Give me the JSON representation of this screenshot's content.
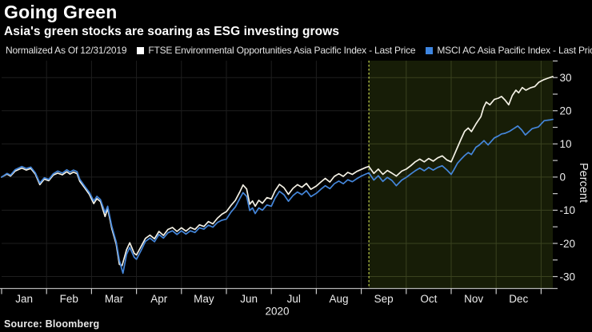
{
  "header": {
    "title": "Going Green",
    "subtitle": "Asia's green stocks are soaring as ESG investing grows"
  },
  "legend": {
    "prefix": "Normalized As Of 12/31/2019",
    "items": [
      {
        "label": "FTSE Environmental Opportunities Asia Pacific Index - Last Price",
        "swatch_color": "#ffffff"
      },
      {
        "label": "MSCI AC Asia Pacific Index - Last Price",
        "swatch_color": "#3d85e0"
      }
    ]
  },
  "footer": {
    "source": "Source: Bloomberg"
  },
  "colors": {
    "background": "#000000",
    "grid_dark": "#1e1e1e",
    "grid_highlight": "#3a421f",
    "highlight_fill": "#171d07",
    "highlight_dash_line": "#a9b741",
    "axis_line": "#b4b4b4",
    "tick": "#c9c9c9",
    "axis_text": "#ececec",
    "series_ftse": "#f4f1e5",
    "series_msci": "#4486da"
  },
  "chart_data": {
    "type": "line",
    "title": "Going Green",
    "subtitle": "Asia's green stocks are soaring as ESG investing grows",
    "normalized_as_of": "12/31/2019",
    "xlabel": "2020",
    "ylabel": "Percent",
    "x_tick_labels": [
      "Jan",
      "Feb",
      "Mar",
      "Apr",
      "May",
      "Jun",
      "Jul",
      "Aug",
      "Sep",
      "Oct",
      "Nov",
      "Dec"
    ],
    "x_domain_months": [
      0,
      12.26
    ],
    "y_ticks_labeled": [
      30,
      20,
      10,
      0,
      -10,
      -20,
      -30
    ],
    "y_minor_tick_step": 5,
    "y_range": [
      -33.6,
      35.1
    ],
    "grid": true,
    "legend_position": "top",
    "highlight_region": {
      "start_month": 8.17,
      "end_month": 12.26
    },
    "series": [
      {
        "name": "FTSE Environmental Opportunities Asia Pacific Index - Last Price",
        "color": "#f4f1e5",
        "points": [
          [
            0,
            0
          ],
          [
            0.12,
            0.9
          ],
          [
            0.2,
            0.3
          ],
          [
            0.3,
            1.8
          ],
          [
            0.45,
            2.7
          ],
          [
            0.55,
            2.1
          ],
          [
            0.65,
            2.6
          ],
          [
            0.75,
            0.9
          ],
          [
            0.85,
            -2.3
          ],
          [
            0.95,
            -0.6
          ],
          [
            1.05,
            -1.1
          ],
          [
            1.15,
            0.6
          ],
          [
            1.25,
            1.2
          ],
          [
            1.35,
            0.7
          ],
          [
            1.45,
            1.6
          ],
          [
            1.52,
            0.9
          ],
          [
            1.6,
            1.5
          ],
          [
            1.68,
            1.0
          ],
          [
            1.74,
            -1.3
          ],
          [
            1.85,
            -3.3
          ],
          [
            1.95,
            -5.2
          ],
          [
            2.05,
            -8.0
          ],
          [
            2.12,
            -6.5
          ],
          [
            2.2,
            -7.4
          ],
          [
            2.3,
            -11.9
          ],
          [
            2.36,
            -9.5
          ],
          [
            2.45,
            -15.5
          ],
          [
            2.55,
            -20.3
          ],
          [
            2.62,
            -26.3
          ],
          [
            2.68,
            -26.7
          ],
          [
            2.78,
            -21.9
          ],
          [
            2.85,
            -19.8
          ],
          [
            2.95,
            -23.0
          ],
          [
            3.0,
            -23.5
          ],
          [
            3.1,
            -21.0
          ],
          [
            3.2,
            -18.5
          ],
          [
            3.3,
            -17.5
          ],
          [
            3.4,
            -18.6
          ],
          [
            3.5,
            -16.4
          ],
          [
            3.6,
            -17.6
          ],
          [
            3.7,
            -15.8
          ],
          [
            3.8,
            -15.2
          ],
          [
            3.9,
            -16.4
          ],
          [
            4.0,
            -15.3
          ],
          [
            4.1,
            -16.3
          ],
          [
            4.2,
            -15.2
          ],
          [
            4.3,
            -15.8
          ],
          [
            4.4,
            -14.4
          ],
          [
            4.5,
            -14.9
          ],
          [
            4.6,
            -13.4
          ],
          [
            4.7,
            -14.1
          ],
          [
            4.8,
            -12.4
          ],
          [
            4.9,
            -11.2
          ],
          [
            5.0,
            -10.4
          ],
          [
            5.1,
            -8.6
          ],
          [
            5.2,
            -7.0
          ],
          [
            5.3,
            -4.4
          ],
          [
            5.37,
            -2.4
          ],
          [
            5.45,
            -3.6
          ],
          [
            5.52,
            -8.2
          ],
          [
            5.58,
            -7.2
          ],
          [
            5.64,
            -8.8
          ],
          [
            5.72,
            -7.0
          ],
          [
            5.8,
            -7.9
          ],
          [
            5.9,
            -6.2
          ],
          [
            6.0,
            -6.6
          ],
          [
            6.08,
            -4.2
          ],
          [
            6.18,
            -2.2
          ],
          [
            6.28,
            -3.2
          ],
          [
            6.38,
            -5.2
          ],
          [
            6.48,
            -3.4
          ],
          [
            6.58,
            -2.3
          ],
          [
            6.68,
            -3.1
          ],
          [
            6.78,
            -1.9
          ],
          [
            6.88,
            -3.7
          ],
          [
            7.0,
            -2.7
          ],
          [
            7.1,
            -1.5
          ],
          [
            7.2,
            -0.4
          ],
          [
            7.3,
            -1.5
          ],
          [
            7.4,
            0.2
          ],
          [
            7.5,
            1.0
          ],
          [
            7.6,
            0.2
          ],
          [
            7.7,
            1.4
          ],
          [
            7.8,
            0.8
          ],
          [
            7.9,
            1.7
          ],
          [
            8.0,
            2.3
          ],
          [
            8.1,
            2.9
          ],
          [
            8.17,
            3.2
          ],
          [
            8.28,
            1.1
          ],
          [
            8.38,
            2.4
          ],
          [
            8.48,
            0.8
          ],
          [
            8.58,
            2.0
          ],
          [
            8.68,
            1.2
          ],
          [
            8.78,
            0.3
          ],
          [
            8.9,
            1.8
          ],
          [
            9.0,
            2.4
          ],
          [
            9.1,
            3.4
          ],
          [
            9.2,
            4.6
          ],
          [
            9.3,
            5.4
          ],
          [
            9.4,
            4.6
          ],
          [
            9.5,
            5.6
          ],
          [
            9.6,
            4.8
          ],
          [
            9.7,
            5.8
          ],
          [
            9.8,
            6.4
          ],
          [
            9.9,
            5.2
          ],
          [
            10.0,
            4.6
          ],
          [
            10.06,
            6.5
          ],
          [
            10.14,
            9.0
          ],
          [
            10.22,
            11.5
          ],
          [
            10.3,
            13.8
          ],
          [
            10.38,
            14.8
          ],
          [
            10.45,
            13.7
          ],
          [
            10.55,
            16.0
          ],
          [
            10.6,
            17.0
          ],
          [
            10.66,
            18.2
          ],
          [
            10.72,
            21.0
          ],
          [
            10.78,
            22.6
          ],
          [
            10.86,
            21.8
          ],
          [
            10.96,
            23.4
          ],
          [
            11.05,
            23.8
          ],
          [
            11.12,
            24.3
          ],
          [
            11.2,
            23.2
          ],
          [
            11.28,
            21.8
          ],
          [
            11.36,
            24.6
          ],
          [
            11.44,
            26.2
          ],
          [
            11.5,
            25.4
          ],
          [
            11.58,
            27.0
          ],
          [
            11.66,
            26.2
          ],
          [
            11.76,
            26.9
          ],
          [
            11.86,
            27.3
          ],
          [
            11.95,
            28.6
          ],
          [
            12.05,
            29.3
          ],
          [
            12.15,
            29.8
          ],
          [
            12.26,
            30.3
          ]
        ]
      },
      {
        "name": "MSCI AC Asia Pacific Index - Last Price",
        "color": "#4486da",
        "points": [
          [
            0,
            0
          ],
          [
            0.12,
            1.1
          ],
          [
            0.2,
            0.6
          ],
          [
            0.3,
            2.2
          ],
          [
            0.45,
            3.2
          ],
          [
            0.55,
            2.6
          ],
          [
            0.65,
            3.0
          ],
          [
            0.75,
            1.3
          ],
          [
            0.85,
            -1.8
          ],
          [
            0.95,
            -0.2
          ],
          [
            1.05,
            -0.7
          ],
          [
            1.15,
            1.0
          ],
          [
            1.25,
            1.8
          ],
          [
            1.35,
            1.2
          ],
          [
            1.45,
            2.2
          ],
          [
            1.52,
            1.5
          ],
          [
            1.6,
            2.1
          ],
          [
            1.68,
            1.6
          ],
          [
            1.74,
            -0.7
          ],
          [
            1.85,
            -2.8
          ],
          [
            1.95,
            -4.6
          ],
          [
            2.05,
            -7.2
          ],
          [
            2.12,
            -5.8
          ],
          [
            2.2,
            -6.8
          ],
          [
            2.3,
            -10.7
          ],
          [
            2.36,
            -8.8
          ],
          [
            2.45,
            -14.8
          ],
          [
            2.55,
            -19.6
          ],
          [
            2.62,
            -25.1
          ],
          [
            2.7,
            -29.0
          ],
          [
            2.78,
            -23.3
          ],
          [
            2.85,
            -21.2
          ],
          [
            2.95,
            -24.2
          ],
          [
            3.0,
            -24.8
          ],
          [
            3.1,
            -22.2
          ],
          [
            3.2,
            -19.4
          ],
          [
            3.3,
            -18.4
          ],
          [
            3.4,
            -19.5
          ],
          [
            3.5,
            -17.3
          ],
          [
            3.6,
            -18.4
          ],
          [
            3.7,
            -16.8
          ],
          [
            3.8,
            -16.2
          ],
          [
            3.9,
            -17.3
          ],
          [
            4.0,
            -16.2
          ],
          [
            4.1,
            -17.2
          ],
          [
            4.2,
            -16.2
          ],
          [
            4.3,
            -16.7
          ],
          [
            4.4,
            -15.3
          ],
          [
            4.5,
            -15.7
          ],
          [
            4.6,
            -14.5
          ],
          [
            4.7,
            -15.1
          ],
          [
            4.8,
            -13.7
          ],
          [
            4.9,
            -13.0
          ],
          [
            5.0,
            -12.7
          ],
          [
            5.1,
            -10.6
          ],
          [
            5.2,
            -9.0
          ],
          [
            5.3,
            -6.4
          ],
          [
            5.37,
            -4.7
          ],
          [
            5.45,
            -5.8
          ],
          [
            5.52,
            -10.1
          ],
          [
            5.58,
            -9.3
          ],
          [
            5.64,
            -11.0
          ],
          [
            5.72,
            -9.3
          ],
          [
            5.8,
            -10.0
          ],
          [
            5.9,
            -8.4
          ],
          [
            6.0,
            -8.8
          ],
          [
            6.08,
            -6.4
          ],
          [
            6.18,
            -4.3
          ],
          [
            6.28,
            -5.3
          ],
          [
            6.38,
            -7.3
          ],
          [
            6.48,
            -5.6
          ],
          [
            6.58,
            -4.5
          ],
          [
            6.68,
            -5.3
          ],
          [
            6.78,
            -4.1
          ],
          [
            6.88,
            -5.9
          ],
          [
            7.0,
            -4.9
          ],
          [
            7.1,
            -3.7
          ],
          [
            7.2,
            -2.6
          ],
          [
            7.3,
            -3.5
          ],
          [
            7.4,
            -2.0
          ],
          [
            7.5,
            -1.2
          ],
          [
            7.6,
            -2.0
          ],
          [
            7.7,
            -0.8
          ],
          [
            7.8,
            -1.4
          ],
          [
            7.9,
            -0.5
          ],
          [
            8.0,
            0.3
          ],
          [
            8.1,
            0.9
          ],
          [
            8.17,
            1.3
          ],
          [
            8.28,
            -0.9
          ],
          [
            8.38,
            0.4
          ],
          [
            8.48,
            -1.3
          ],
          [
            8.58,
            -0.1
          ],
          [
            8.68,
            -1.0
          ],
          [
            8.78,
            -2.6
          ],
          [
            8.9,
            -0.9
          ],
          [
            9.0,
            -0.1
          ],
          [
            9.1,
            0.9
          ],
          [
            9.2,
            1.9
          ],
          [
            9.3,
            2.7
          ],
          [
            9.4,
            1.9
          ],
          [
            9.5,
            2.9
          ],
          [
            9.6,
            2.1
          ],
          [
            9.7,
            2.9
          ],
          [
            9.8,
            3.4
          ],
          [
            9.9,
            2.2
          ],
          [
            10.0,
            0.8
          ],
          [
            10.06,
            2.2
          ],
          [
            10.14,
            4.2
          ],
          [
            10.22,
            5.4
          ],
          [
            10.3,
            6.5
          ],
          [
            10.38,
            7.4
          ],
          [
            10.45,
            6.8
          ],
          [
            10.55,
            9.0
          ],
          [
            10.62,
            9.6
          ],
          [
            10.73,
            11.0
          ],
          [
            10.82,
            9.7
          ],
          [
            10.96,
            11.8
          ],
          [
            11.05,
            12.4
          ],
          [
            11.12,
            13.0
          ],
          [
            11.2,
            13.2
          ],
          [
            11.3,
            13.8
          ],
          [
            11.39,
            14.6
          ],
          [
            11.48,
            15.4
          ],
          [
            11.57,
            14.2
          ],
          [
            11.65,
            12.7
          ],
          [
            11.8,
            14.6
          ],
          [
            11.94,
            15.1
          ],
          [
            12.07,
            17.0
          ],
          [
            12.18,
            17.2
          ],
          [
            12.26,
            17.4
          ]
        ]
      }
    ]
  }
}
